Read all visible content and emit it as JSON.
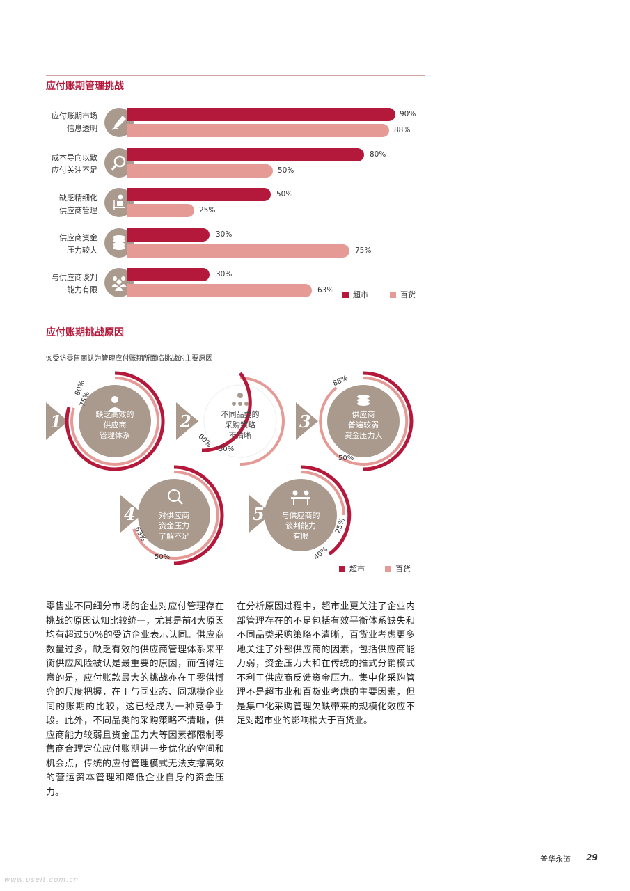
{
  "section1": {
    "title": "应付账期管理挑战",
    "categories": [
      {
        "label_line1": "应付账期市场",
        "label_line2": "信息透明",
        "icon": "pen-writing-icon",
        "supermarket": "90%",
        "department": "88%"
      },
      {
        "label_line1": "成本导向以致",
        "label_line2": "应付关注不足",
        "icon": "magnifier-icon",
        "supermarket": "80%",
        "department": "50%"
      },
      {
        "label_line1": "缺乏精细化",
        "label_line2": "供应商管理",
        "icon": "person-desk-icon",
        "supermarket": "50%",
        "department": "25%"
      },
      {
        "label_line1": "供应商资金",
        "label_line2": "压力较大",
        "icon": "coin-stack-icon",
        "supermarket": "30%",
        "department": "75%"
      },
      {
        "label_line1": "与供应商谈判",
        "label_line2": "能力有限",
        "icon": "people-group-icon",
        "supermarket": "30%",
        "department": "63%"
      }
    ],
    "legend": {
      "supermarket": "超市",
      "department": "百货"
    }
  },
  "section2": {
    "title": "应付账期挑战原因",
    "subtitle": "%受访零售商认为管理应付账期所面临挑战的主要原因",
    "reasons": [
      {
        "num": "1",
        "line1": "缺乏高效的",
        "line2": "供应商",
        "line3": "管理体系",
        "icon": "person-icon",
        "supermarket": "80%",
        "department": "75%"
      },
      {
        "num": "2",
        "line1": "不同品类的",
        "line2": "采购策略",
        "line3": "不清晰",
        "icon": "hierarchy-icon",
        "supermarket": "60%",
        "department": "50%"
      },
      {
        "num": "3",
        "line1": "供应商",
        "line2": "普遍较弱",
        "line3": "资金压力大",
        "icon": "coin-stack-icon",
        "supermarket": "50%",
        "department": "88%"
      },
      {
        "num": "4",
        "line1": "对供应商",
        "line2": "资金压力",
        "line3": "了解不足",
        "icon": "money-magnifier-icon",
        "supermarket": "50%",
        "department": "63%"
      },
      {
        "num": "5",
        "line1": "与供应商的",
        "line2": "谈判能力",
        "line3": "有限",
        "icon": "meeting-icon",
        "supermarket": "40%",
        "department": "25%"
      }
    ],
    "legend": {
      "supermarket": "超市",
      "department": "百货"
    }
  },
  "body": {
    "col1": "零售业不同细分市场的企业对应付管理存在挑战的原因认知比较统一，尤其是前4大原因均有超过50%的受访企业表示认同。供应商数量过多，缺乏有效的供应商管理体系来平衡供应风险被认是最重要的原因，而值得注意的是，应付账款最大的挑战亦在于零供博弈的尺度把握，在于与同业态、同规模企业间的账期的比较，这已经成为一种竞争手段。此外，不同品类的采购策略不清晰，供应商能力较弱且资金压力大等因素都限制零售商合理定位应付账期进一步优化的空间和机会点，传统的应付管理模式无法支撑高效的营运资本管理和降低企业自身的资金压力。",
    "col2": "在分析原因过程中，超市业更关注了企业内部管理存在的不足包括有效平衡体系缺失和不同品类采购策略不清晰，百货业考虑更多地关注了外部供应商的因素，包括供应商能力弱，资金压力大和在传统的推式分销模式不利于供应商反馈资金压力。集中化采购管理不是超市业和百货业考虑的主要因素，但是集中化采购管理欠缺带来的规模化效应不足对超市业的影响稍大于百货业。"
  },
  "footer": {
    "brand": "普华永道",
    "page": "29"
  },
  "watermark": "www.useit.com.cn",
  "colors": {
    "supermarket": "#b4183a",
    "department": "#e59a96",
    "icon_bg": "#a99a8d",
    "title": "#b4183a"
  }
}
